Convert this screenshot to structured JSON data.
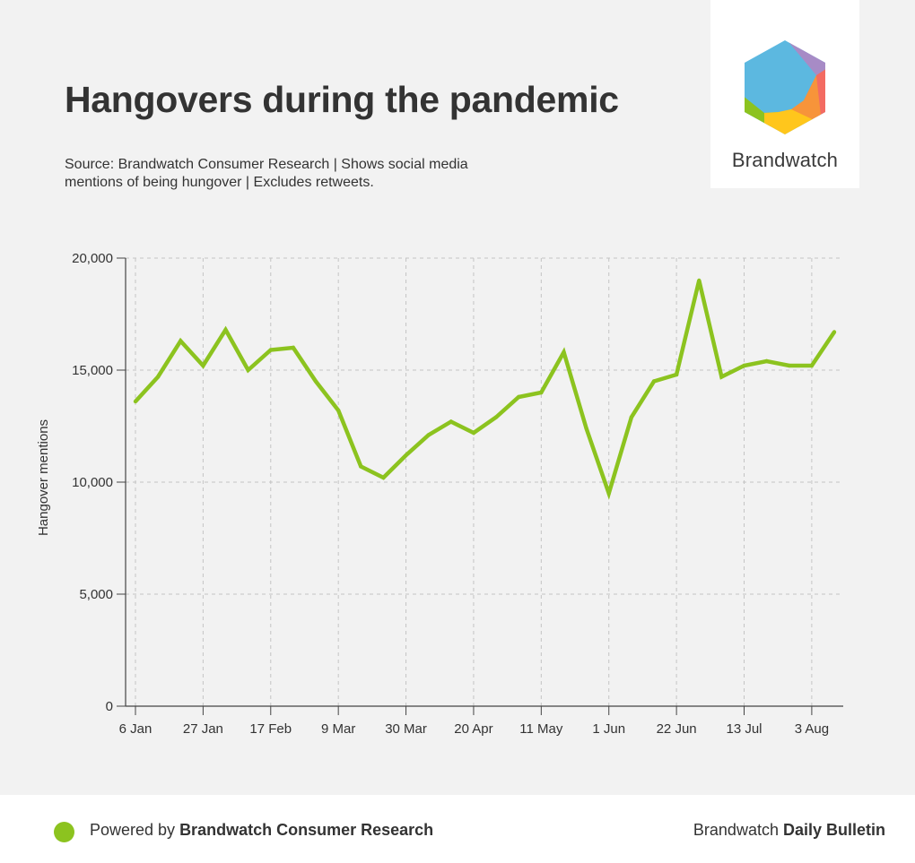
{
  "header": {
    "title": "Hangovers during the pandemic",
    "subtitle": "Source: Brandwatch Consumer Research | Shows social media mentions of being hungover | Excludes retweets."
  },
  "logo": {
    "wordmark": "Brandwatch",
    "icon": "brandwatch-hexagon-logo"
  },
  "footer": {
    "powered_prefix": "Powered by ",
    "powered_brand": "Brandwatch Consumer Research",
    "bulletin_prefix": "Brandwatch ",
    "bulletin_name": "Daily Bulletin",
    "dot_color": "#8cc31f"
  },
  "chart_data": {
    "type": "line",
    "title": "Hangovers during the pandemic",
    "xlabel": "",
    "ylabel": "Hangover mentions",
    "ylim": [
      0,
      20000
    ],
    "yticks": [
      0,
      5000,
      10000,
      15000,
      20000
    ],
    "ytick_labels": [
      "0",
      "5,000",
      "10,000",
      "15,000",
      "20,000"
    ],
    "xtick_labels": [
      "6 Jan",
      "27 Jan",
      "17 Feb",
      "9 Mar",
      "30 Mar",
      "20 Apr",
      "11 May",
      "1 Jun",
      "22 Jun",
      "13 Jul",
      "3 Aug"
    ],
    "grid": true,
    "line_color": "#8cc31f",
    "series": [
      {
        "x": [
          "6 Jan",
          "13 Jan",
          "20 Jan",
          "27 Jan",
          "3 Feb",
          "10 Feb",
          "17 Feb",
          "24 Feb",
          "2 Mar",
          "9 Mar",
          "16 Mar",
          "23 Mar",
          "30 Mar",
          "6 Apr",
          "13 Apr",
          "20 Apr",
          "27 Apr",
          "4 May",
          "11 May",
          "18 May",
          "25 May",
          "1 Jun",
          "8 Jun",
          "15 Jun",
          "22 Jun",
          "29 Jun",
          "6 Jul",
          "13 Jul",
          "20 Jul",
          "27 Jul",
          "3 Aug",
          "10 Aug"
        ],
        "values": [
          13600,
          14700,
          16300,
          15200,
          16800,
          15000,
          15900,
          16000,
          14500,
          13200,
          10700,
          10200,
          11200,
          12100,
          12700,
          12200,
          12900,
          13800,
          14000,
          15800,
          12400,
          9500,
          12900,
          14500,
          14800,
          19000,
          14700,
          15200,
          15400,
          15200,
          15200,
          16700
        ]
      }
    ]
  }
}
